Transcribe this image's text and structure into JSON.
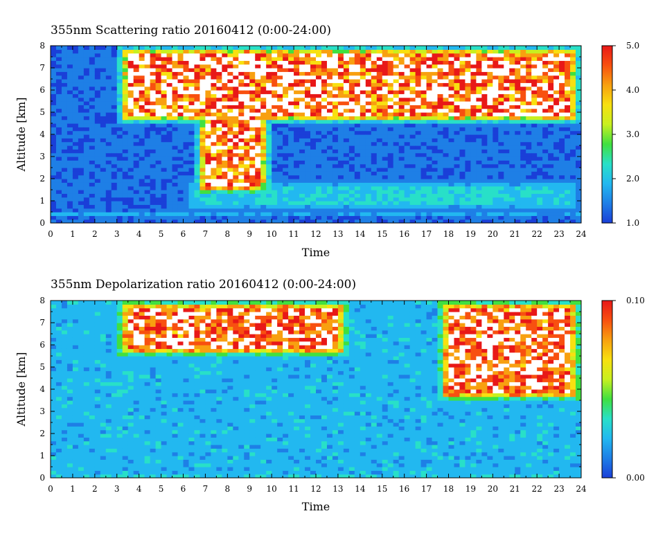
{
  "chart_data": [
    {
      "type": "heatmap",
      "title": "355nm Scattering ratio  20160412 (0:00-24:00)",
      "xlabel": "Time",
      "ylabel": "Altitude [km]",
      "xlim": [
        0,
        24
      ],
      "ylim": [
        0,
        8
      ],
      "x_ticks": [
        "0",
        "1",
        "2",
        "3",
        "4",
        "5",
        "6",
        "7",
        "8",
        "9",
        "10",
        "11",
        "12",
        "13",
        "14",
        "15",
        "16",
        "17",
        "18",
        "19",
        "20",
        "21",
        "22",
        "23",
        "24"
      ],
      "y_ticks": [
        "0",
        "1",
        "2",
        "3",
        "4",
        "5",
        "6",
        "7",
        "8"
      ],
      "colorbar": {
        "range": [
          1.0,
          5.0
        ],
        "tick_labels": [
          "1.0",
          "2.0",
          "3.0",
          "4.0",
          "5.0"
        ],
        "colors": [
          "#1a3fd8",
          "#1e7fe6",
          "#22b8f0",
          "#28e0c8",
          "#40e040",
          "#c8f020",
          "#f8e010",
          "#f8a010",
          "#f85010",
          "#e81818"
        ]
      },
      "background_value": 1.5,
      "saturated_color": "#ffffff",
      "features": [
        {
          "name": "near-surface aerosol layer",
          "t_start": 6,
          "t_end": 24,
          "alt_bottom": 0.5,
          "alt_top": 2.0,
          "value": 2.3
        },
        {
          "name": "ground return",
          "t_start": 0,
          "t_end": 24,
          "alt_bottom": 0.35,
          "alt_top": 0.45,
          "value": 5.0
        },
        {
          "name": "cirrus cloud",
          "t_start": 3,
          "t_end": 24,
          "alt_bottom": 4.5,
          "alt_top": 8.0,
          "value": 5.0
        },
        {
          "name": "mid-level cloud",
          "t_start": 6.5,
          "t_end": 10,
          "alt_bottom": 1.3,
          "alt_top": 6.5,
          "value": 5.0
        }
      ]
    },
    {
      "type": "heatmap",
      "title": "355nm Depolarization ratio  20160412 (0:00-24:00)",
      "xlabel": "Time",
      "ylabel": "Altitude [km]",
      "xlim": [
        0,
        24
      ],
      "ylim": [
        0,
        8
      ],
      "x_ticks": [
        "0",
        "1",
        "2",
        "3",
        "4",
        "5",
        "6",
        "7",
        "8",
        "9",
        "10",
        "11",
        "12",
        "13",
        "14",
        "15",
        "16",
        "17",
        "18",
        "19",
        "20",
        "21",
        "22",
        "23",
        "24"
      ],
      "y_ticks": [
        "0",
        "1",
        "2",
        "3",
        "4",
        "5",
        "6",
        "7",
        "8"
      ],
      "colorbar": {
        "range": [
          0.0,
          0.1
        ],
        "tick_labels": [
          "0.00",
          "0.10"
        ],
        "colors": [
          "#1a3fd8",
          "#1e7fe6",
          "#22b8f0",
          "#28e0c8",
          "#40e040",
          "#c8f020",
          "#f8e010",
          "#f8a010",
          "#f85010",
          "#e81818"
        ]
      },
      "background_value": 0.025,
      "saturated_color": "#ffffff",
      "features": [
        {
          "name": "ground layer",
          "t_start": 0,
          "t_end": 24,
          "alt_bottom": 0.0,
          "alt_top": 0.2,
          "value": 0.05
        },
        {
          "name": "ice cloud",
          "t_start": 3,
          "t_end": 13.5,
          "alt_bottom": 5.5,
          "alt_top": 8.0,
          "value": 0.1
        },
        {
          "name": "ice cloud",
          "t_start": 17.5,
          "t_end": 24,
          "alt_bottom": 3.5,
          "alt_top": 8.0,
          "value": 0.1
        }
      ]
    }
  ]
}
